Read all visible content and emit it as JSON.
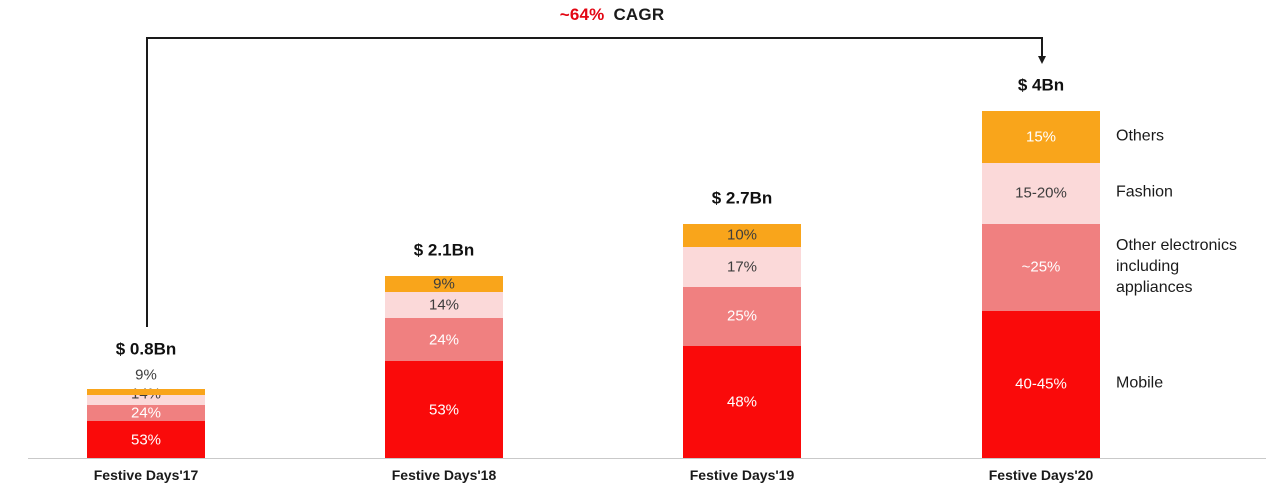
{
  "cagr": {
    "value": "~64%",
    "label": "CAGR",
    "value_color": "#e30613"
  },
  "chart_data": {
    "type": "bar",
    "stacked": true,
    "title": "",
    "annotation": "~64% CAGR",
    "categories": [
      "Festive Days'17",
      "Festive Days'18",
      "Festive Days'19",
      "Festive Days'20"
    ],
    "totals_bn_usd": [
      0.8,
      2.1,
      2.7,
      4.0
    ],
    "total_labels": [
      "$ 0.8Bn",
      "$ 2.1Bn",
      "$ 2.7Bn",
      "$ 4Bn"
    ],
    "legend_position": "right",
    "legend_items": [
      "Others",
      "Fashion",
      "Other electronics including appliances",
      "Mobile"
    ],
    "series": [
      {
        "name": "Mobile",
        "color": "#fa0a0a",
        "labels": [
          "53%",
          "53%",
          "48%",
          "40-45%"
        ],
        "values_pct": [
          53,
          53,
          48,
          42.5
        ],
        "label_colors": [
          "#ffffff",
          "#ffffff",
          "#ffffff",
          "#ffffff"
        ]
      },
      {
        "name": "Other electronics including appliances",
        "color": "#f08080",
        "labels": [
          "24%",
          "24%",
          "25%",
          "~25%"
        ],
        "values_pct": [
          24,
          24,
          25,
          25
        ],
        "label_colors": [
          "#ffffff",
          "#ffffff",
          "#ffffff",
          "#ffffff"
        ]
      },
      {
        "name": "Fashion",
        "color": "#fbd9d9",
        "labels": [
          "14%",
          "14%",
          "17%",
          "15-20%"
        ],
        "values_pct": [
          14,
          14,
          17,
          17.5
        ],
        "label_colors": [
          "#3d3d3d",
          "#3d3d3d",
          "#3d3d3d",
          "#3d3d3d"
        ]
      },
      {
        "name": "Others",
        "color": "#f9a51b",
        "labels": [
          "9%",
          "9%",
          "10%",
          "15%"
        ],
        "values_pct": [
          9,
          9,
          10,
          15
        ],
        "label_colors": [
          "#3d3d3d",
          "#3d3d3d",
          "#3d3d3d",
          "#ffffff"
        ]
      }
    ]
  }
}
